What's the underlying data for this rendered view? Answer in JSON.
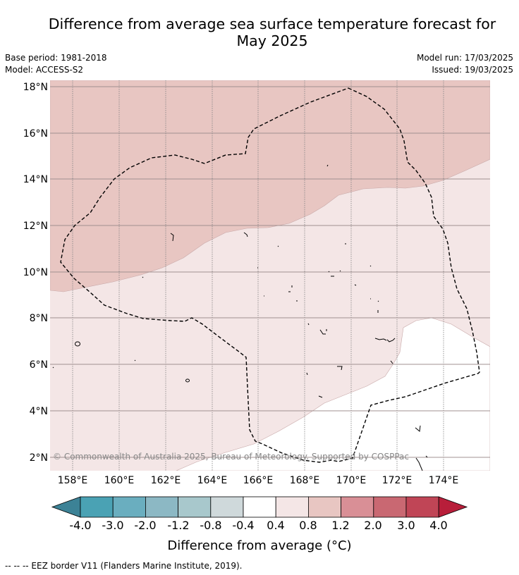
{
  "title_line1": "Difference from average sea surface temperature forecast for",
  "title_line2": "May 2025",
  "base_period": "Base period: 1981-2018",
  "model": "Model: ACCESS-S2",
  "model_run": "Model run: 17/03/2025",
  "issued": "Issued: 19/03/2025",
  "lat_labels": [
    "18°N",
    "16°N",
    "14°N",
    "12°N",
    "10°N",
    "8°N",
    "6°N",
    "4°N",
    "2°N"
  ],
  "lon_labels": [
    "158°E",
    "160°E",
    "162°E",
    "164°E",
    "166°E",
    "168°E",
    "170°E",
    "172°E",
    "174°E"
  ],
  "colorbar": {
    "ticks": [
      "-4.0",
      "-3.0",
      "-2.0",
      "-1.2",
      "-0.8",
      "-0.4",
      "0.4",
      "0.8",
      "1.2",
      "2.0",
      "3.0",
      "4.0"
    ],
    "colors": [
      "#3c8296",
      "#4aa2b4",
      "#6aaebf",
      "#8cb8c4",
      "#a8c8cc",
      "#cfd9db",
      "#ffffff",
      "#f4e6e6",
      "#e8c6c2",
      "#d98f96",
      "#c96872",
      "#c04556",
      "#b81e3a"
    ],
    "label": "Difference from average (°C)"
  },
  "copyright": "© Commonwealth of Australia 2025, Bureau of Meteorology. Supported by COSPPac",
  "footnote": "--  --  -- EEZ border V11 (Flanders Marine Institute, 2019)."
}
